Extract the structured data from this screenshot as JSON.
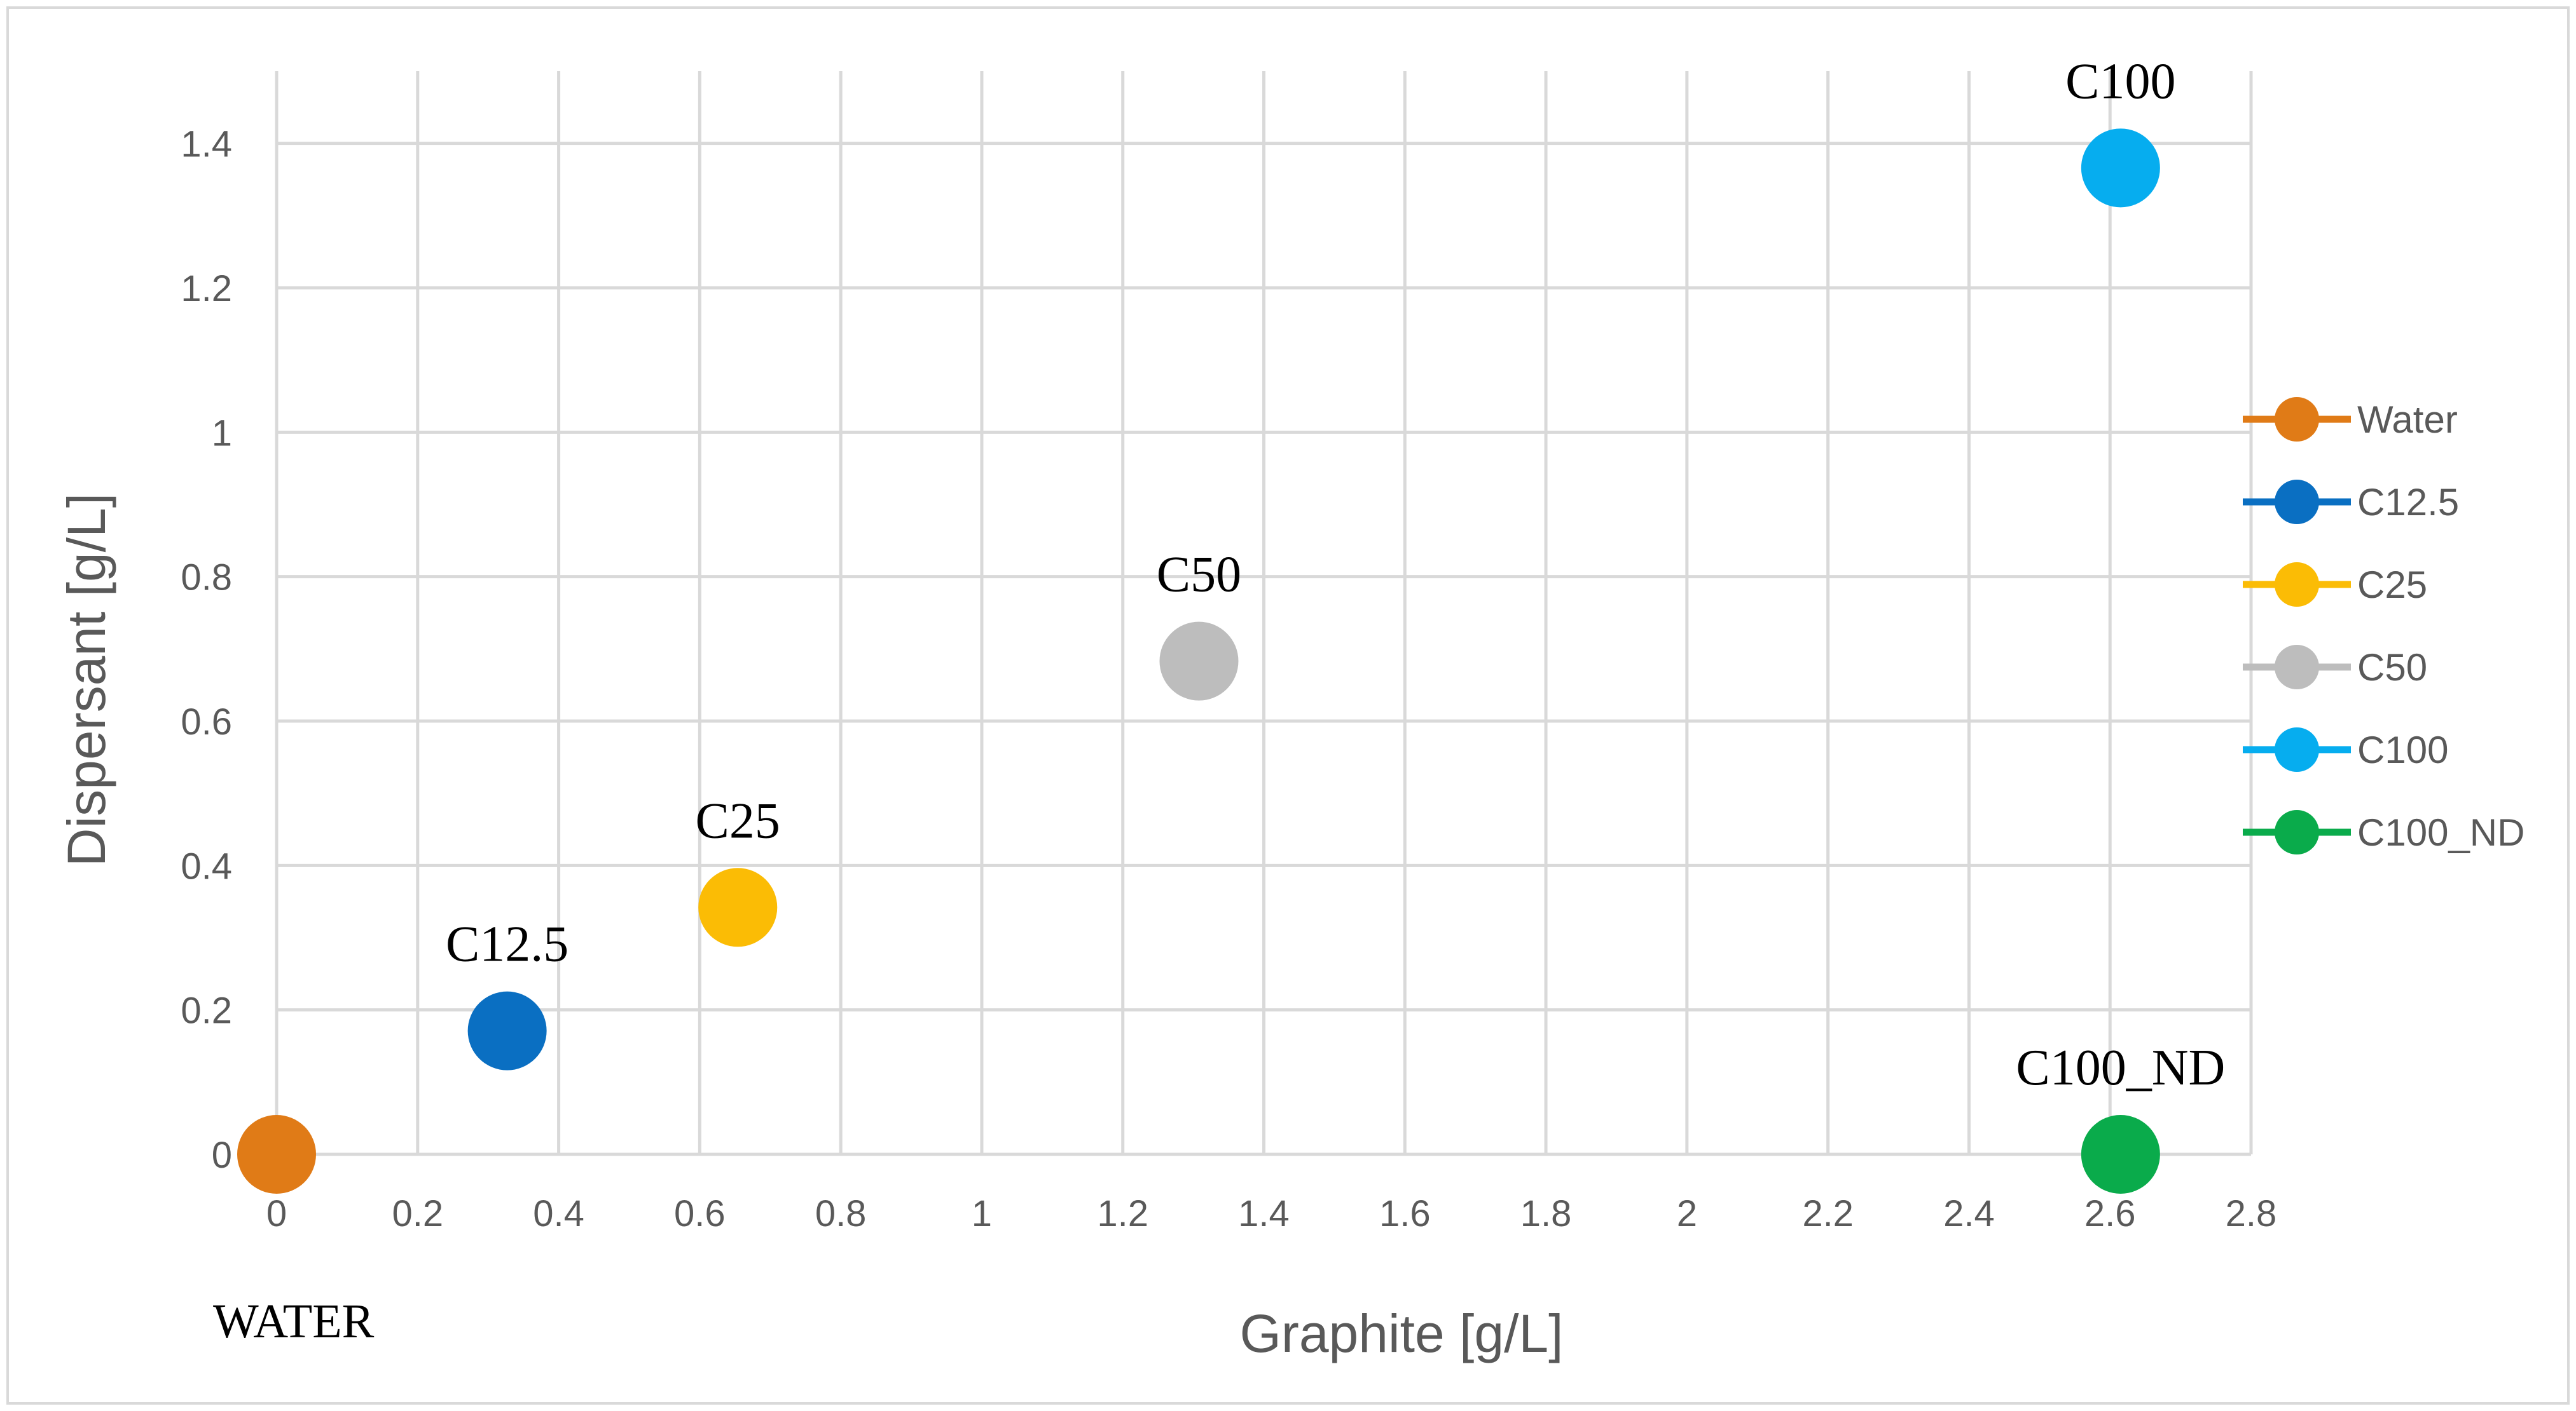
{
  "chart_data": {
    "type": "scatter",
    "title": "",
    "xlabel": "Graphite [g/L]",
    "ylabel": "Dispersant [g/L]",
    "xlim": [
      0,
      2.8
    ],
    "ylim": [
      0,
      1.4
    ],
    "x_ticks": [
      "0",
      "0.2",
      "0.4",
      "0.6",
      "0.8",
      "1",
      "1.2",
      "1.4",
      "1.6",
      "1.8",
      "2",
      "2.2",
      "2.4",
      "2.6",
      "2.8"
    ],
    "y_ticks": [
      "0",
      "0.2",
      "0.4",
      "0.6",
      "0.8",
      "1",
      "1.2",
      "1.4"
    ],
    "grid": true,
    "legend_position": "right",
    "series": [
      {
        "name": "Water",
        "label": "",
        "x": 0,
        "y": 0,
        "color": "#e07b17"
      },
      {
        "name": "C12.5",
        "label": "C12.5",
        "x": 0.327,
        "y": 0.171,
        "color": "#0a6fc2"
      },
      {
        "name": "C25",
        "label": "C25",
        "x": 0.654,
        "y": 0.342,
        "color": "#fbbc05"
      },
      {
        "name": "C50",
        "label": "C50",
        "x": 1.308,
        "y": 0.683,
        "color": "#bdbdbd"
      },
      {
        "name": "C100",
        "label": "C100",
        "x": 2.615,
        "y": 1.366,
        "color": "#06adef"
      },
      {
        "name": "C100_ND",
        "label": "C100_ND",
        "x": 2.615,
        "y": 0,
        "color": "#0aab4b"
      }
    ],
    "annotations": [
      "WATER"
    ]
  }
}
